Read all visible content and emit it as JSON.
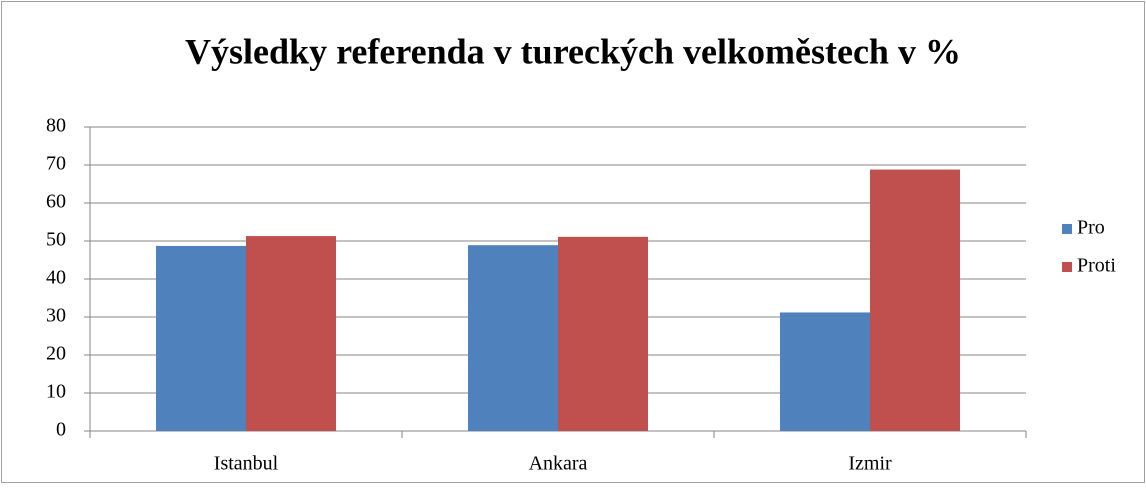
{
  "chart_data": {
    "type": "bar",
    "title": "Výsledky referenda v tureckých velkoměstech v %",
    "categories": [
      "Istanbul",
      "Ankara",
      "Izmir"
    ],
    "series": [
      {
        "name": "Pro",
        "color": "#4f81bd",
        "values": [
          48.7,
          48.9,
          31.2
        ]
      },
      {
        "name": "Proti",
        "color": "#c0504d",
        "values": [
          51.3,
          51.1,
          68.8
        ]
      }
    ],
    "ylim": [
      0,
      80
    ],
    "yticks": [
      0,
      10,
      20,
      30,
      40,
      50,
      60,
      70,
      80
    ],
    "grid": true,
    "legend": "right"
  }
}
